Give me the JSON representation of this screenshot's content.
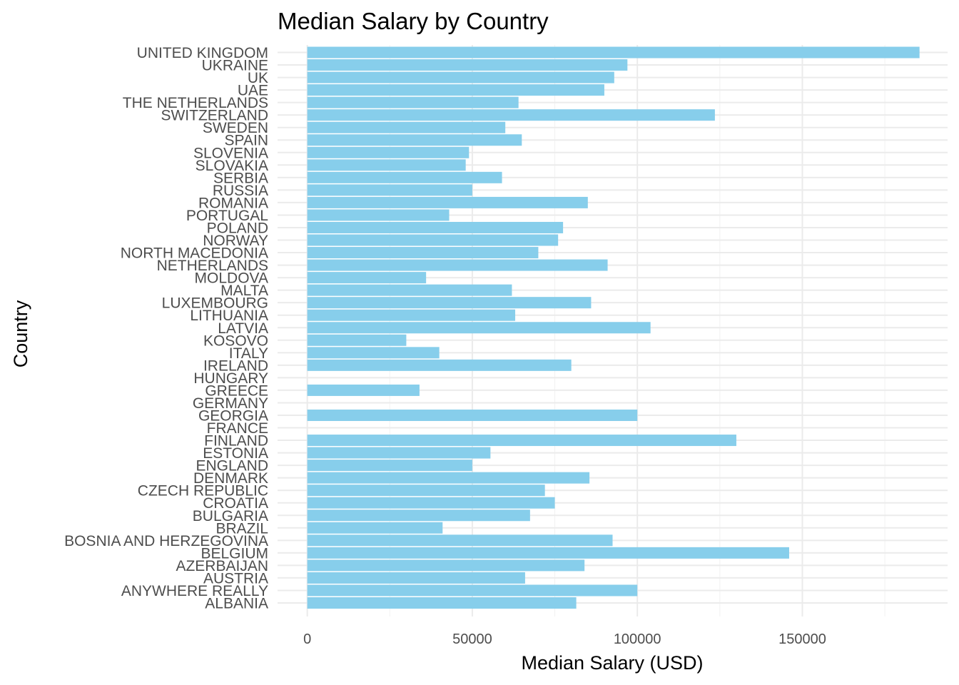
{
  "chart_data": {
    "type": "bar",
    "orientation": "horizontal",
    "title": "Median Salary by Country",
    "xlabel": "Median Salary (USD)",
    "ylabel": "Country",
    "xlim": [
      -9000,
      194000
    ],
    "x_ticks": [
      0,
      50000,
      100000,
      150000
    ],
    "x_tick_labels": [
      "0",
      "50000",
      "100000",
      "150000"
    ],
    "grid": true,
    "bar_color": "#87CEEB",
    "categories": [
      "UNITED KINGDOM",
      "UKRAINE",
      "UK",
      "UAE",
      "THE NETHERLANDS",
      "SWITZERLAND",
      "SWEDEN",
      "SPAIN",
      "SLOVENIA",
      "SLOVAKIA",
      "SERBIA",
      "RUSSIA",
      "ROMANIA",
      "PORTUGAL",
      "POLAND",
      "NORWAY",
      "NORTH MACEDONIA",
      "NETHERLANDS",
      "MOLDOVA",
      "MALTA",
      "LUXEMBOURG",
      "LITHUANIA",
      "LATVIA",
      "KOSOVO",
      "ITALY",
      "IRELAND",
      "HUNGARY",
      "GREECE",
      "GERMANY",
      "GEORGIA",
      "FRANCE",
      "FINLAND",
      "ESTONIA",
      "ENGLAND",
      "DENMARK",
      "CZECH REPUBLIC",
      "CROATIA",
      "BULGARIA",
      "BRAZIL",
      "BOSNIA AND HERZEGOVINA",
      "BELGIUM",
      "AZERBAIJAN",
      "AUSTRIA",
      "ANYWHERE REALLY",
      "ALBANIA"
    ],
    "values": [
      185500,
      97000,
      93000,
      90000,
      64000,
      123500,
      60000,
      65000,
      49000,
      48000,
      59000,
      50000,
      85000,
      43000,
      77500,
      76000,
      70000,
      91000,
      36000,
      62000,
      86000,
      63000,
      104000,
      30000,
      40000,
      80000,
      null,
      34000,
      null,
      100000,
      null,
      130000,
      55500,
      50000,
      85500,
      72000,
      75000,
      67500,
      41000,
      92500,
      146000,
      84000,
      66000,
      100000,
      81500
    ]
  }
}
